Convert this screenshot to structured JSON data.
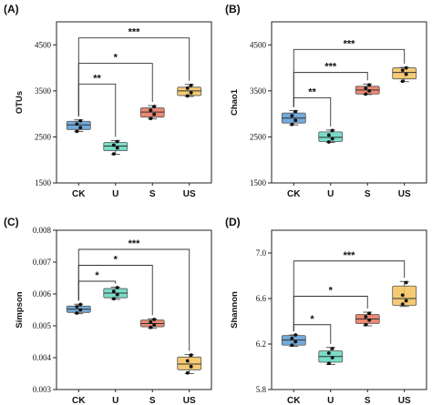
{
  "colors": {
    "CK": "#5b9bd5",
    "U": "#62d6c0",
    "S": "#e8735b",
    "US": "#f2c25c"
  },
  "chart_data": [
    {
      "panel": "(A)",
      "type": "box",
      "ylabel": "OTUs",
      "categories": [
        "CK",
        "U",
        "S",
        "US"
      ],
      "ylim": [
        1500,
        5000
      ],
      "yticks": [
        1500,
        2500,
        3500,
        4500
      ],
      "boxes": [
        {
          "q1": 2660,
          "median": 2760,
          "q3": 2840,
          "whisker_low": 2620,
          "whisker_high": 2870,
          "points": [
            2620,
            2700,
            2780,
            2850
          ]
        },
        {
          "q1": 2200,
          "median": 2300,
          "q3": 2380,
          "whisker_low": 2120,
          "whisker_high": 2420,
          "points": [
            2130,
            2260,
            2320,
            2400
          ]
        },
        {
          "q1": 2930,
          "median": 3040,
          "q3": 3130,
          "whisker_low": 2890,
          "whisker_high": 3180,
          "points": [
            2900,
            2990,
            3080,
            3160
          ]
        },
        {
          "q1": 3400,
          "median": 3500,
          "q3": 3580,
          "whisker_low": 3380,
          "whisker_high": 3640,
          "points": [
            3390,
            3460,
            3560,
            3620
          ]
        }
      ],
      "significance": [
        {
          "from": "CK",
          "to": "U",
          "label": "**",
          "y": 3650
        },
        {
          "from": "CK",
          "to": "S",
          "label": "*",
          "y": 4100
        },
        {
          "from": "CK",
          "to": "US",
          "label": "***",
          "y": 4650
        }
      ]
    },
    {
      "panel": "(B)",
      "type": "box",
      "ylabel": "Chao1",
      "categories": [
        "CK",
        "U",
        "S",
        "US"
      ],
      "ylim": [
        1500,
        5000
      ],
      "yticks": [
        1500,
        2500,
        3500,
        4500
      ],
      "boxes": [
        {
          "q1": 2800,
          "median": 2910,
          "q3": 3020,
          "whisker_low": 2760,
          "whisker_high": 3070,
          "points": [
            2770,
            2860,
            2960,
            3050
          ]
        },
        {
          "q1": 2400,
          "median": 2490,
          "q3": 2610,
          "whisker_low": 2380,
          "whisker_high": 2650,
          "points": [
            2390,
            2460,
            2540,
            2640
          ]
        },
        {
          "q1": 3430,
          "median": 3520,
          "q3": 3600,
          "whisker_low": 3420,
          "whisker_high": 3650,
          "points": [
            3430,
            3500,
            3560,
            3630
          ]
        },
        {
          "q1": 3760,
          "median": 3900,
          "q3": 4000,
          "whisker_low": 3700,
          "whisker_high": 4010,
          "points": [
            3710,
            3860,
            3950,
            4000
          ]
        }
      ],
      "significance": [
        {
          "from": "CK",
          "to": "U",
          "label": "**",
          "y": 3350
        },
        {
          "from": "CK",
          "to": "S",
          "label": "***",
          "y": 3900
        },
        {
          "from": "CK",
          "to": "US",
          "label": "***",
          "y": 4400
        }
      ]
    },
    {
      "panel": "(C)",
      "type": "box",
      "ylabel": "Simpson",
      "categories": [
        "CK",
        "U",
        "S",
        "US"
      ],
      "ylim": [
        0.003,
        0.008
      ],
      "yticks": [
        0.003,
        0.004,
        0.005,
        0.006,
        0.007,
        0.008
      ],
      "tick_labels": [
        "0.003",
        "0.004",
        "0.005",
        "0.006",
        "0.007",
        "0.008"
      ],
      "boxes": [
        {
          "q1": 0.00542,
          "median": 0.00552,
          "q3": 0.00562,
          "whisker_low": 0.00538,
          "whisker_high": 0.00568,
          "points": [
            0.0054,
            0.0055,
            0.0056,
            0.00567
          ]
        },
        {
          "q1": 0.00588,
          "median": 0.00603,
          "q3": 0.00617,
          "whisker_low": 0.00583,
          "whisker_high": 0.00621,
          "points": [
            0.00585,
            0.00598,
            0.00608,
            0.0062
          ]
        },
        {
          "q1": 0.00497,
          "median": 0.00507,
          "q3": 0.00518,
          "whisker_low": 0.00492,
          "whisker_high": 0.00522,
          "points": [
            0.00495,
            0.00503,
            0.00512,
            0.0052
          ]
        },
        {
          "q1": 0.00362,
          "median": 0.0038,
          "q3": 0.00402,
          "whisker_low": 0.0035,
          "whisker_high": 0.0041,
          "points": [
            0.00352,
            0.00372,
            0.0039,
            0.00408
          ]
        }
      ],
      "significance": [
        {
          "from": "CK",
          "to": "U",
          "label": "*",
          "y": 0.0064
        },
        {
          "from": "CK",
          "to": "S",
          "label": "*",
          "y": 0.0069
        },
        {
          "from": "CK",
          "to": "US",
          "label": "***",
          "y": 0.0074
        }
      ]
    },
    {
      "panel": "(D)",
      "type": "box",
      "ylabel": "Shannon",
      "categories": [
        "CK",
        "U",
        "S",
        "US"
      ],
      "ylim": [
        5.8,
        7.2
      ],
      "yticks": [
        5.8,
        6.2,
        6.6,
        7.0
      ],
      "tick_labels": [
        "5.8",
        "6.2",
        "6.6",
        "7.0"
      ],
      "boxes": [
        {
          "q1": 6.19,
          "median": 6.235,
          "q3": 6.275,
          "whisker_low": 6.18,
          "whisker_high": 6.28,
          "points": [
            6.19,
            6.22,
            6.25,
            6.28
          ]
        },
        {
          "q1": 6.04,
          "median": 6.09,
          "q3": 6.14,
          "whisker_low": 6.02,
          "whisker_high": 6.17,
          "points": [
            6.03,
            6.08,
            6.12,
            6.16
          ]
        },
        {
          "q1": 6.38,
          "median": 6.42,
          "q3": 6.46,
          "whisker_low": 6.36,
          "whisker_high": 6.48,
          "points": [
            6.37,
            6.41,
            6.44,
            6.47
          ]
        },
        {
          "q1": 6.54,
          "median": 6.6,
          "q3": 6.71,
          "whisker_low": 6.53,
          "whisker_high": 6.75,
          "points": [
            6.55,
            6.58,
            6.63,
            6.74
          ]
        }
      ],
      "significance": [
        {
          "from": "CK",
          "to": "U",
          "label": "*",
          "y": 6.37
        },
        {
          "from": "CK",
          "to": "S",
          "label": "*",
          "y": 6.62
        },
        {
          "from": "CK",
          "to": "US",
          "label": "***",
          "y": 6.93
        }
      ]
    }
  ]
}
